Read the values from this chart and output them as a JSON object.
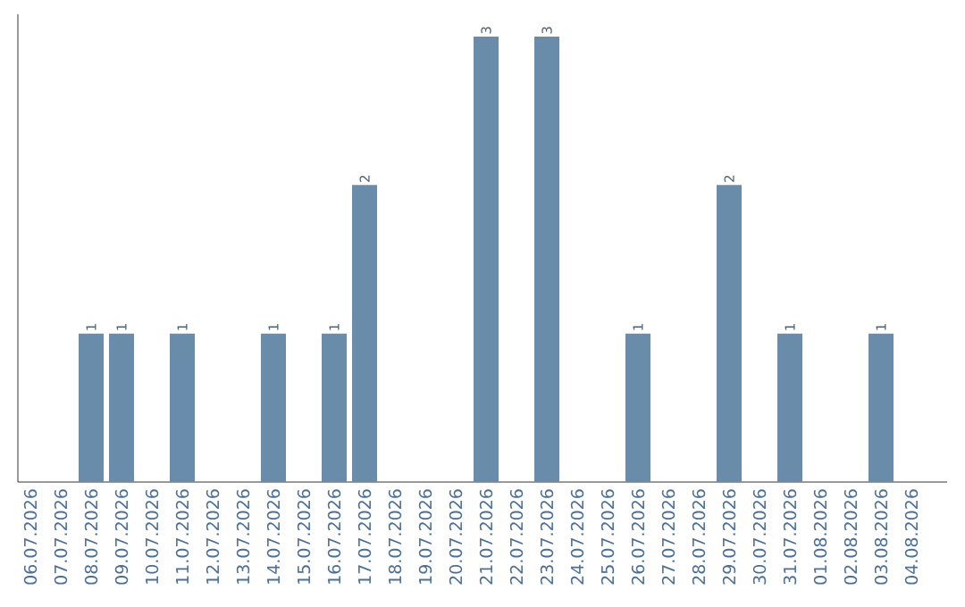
{
  "chart_data": {
    "type": "bar",
    "categories": [
      "06.07.2026",
      "07.07.2026",
      "08.07.2026",
      "09.07.2026",
      "10.07.2026",
      "11.07.2026",
      "12.07.2026",
      "13.07.2026",
      "14.07.2026",
      "15.07.2026",
      "16.07.2026",
      "17.07.2026",
      "18.07.2026",
      "19.07.2026",
      "20.07.2026",
      "21.07.2026",
      "22.07.2026",
      "23.07.2026",
      "24.07.2026",
      "25.07.2026",
      "26.07.2026",
      "27.07.2026",
      "28.07.2026",
      "29.07.2026",
      "30.07.2026",
      "31.07.2026",
      "01.08.2026",
      "02.08.2026",
      "03.08.2026",
      "04.08.2026"
    ],
    "values": [
      0,
      0,
      1,
      1,
      0,
      1,
      0,
      0,
      1,
      0,
      1,
      2,
      0,
      0,
      0,
      3,
      0,
      3,
      0,
      0,
      1,
      0,
      0,
      2,
      0,
      1,
      0,
      0,
      1,
      0
    ],
    "value_labels": [
      null,
      null,
      "1",
      "1",
      null,
      "1",
      null,
      null,
      "1",
      null,
      "1",
      "2",
      null,
      null,
      null,
      "3",
      null,
      "3",
      null,
      null,
      "1",
      null,
      null,
      "2",
      null,
      "1",
      null,
      null,
      "1",
      null
    ],
    "color": "#6a8cab"
  }
}
